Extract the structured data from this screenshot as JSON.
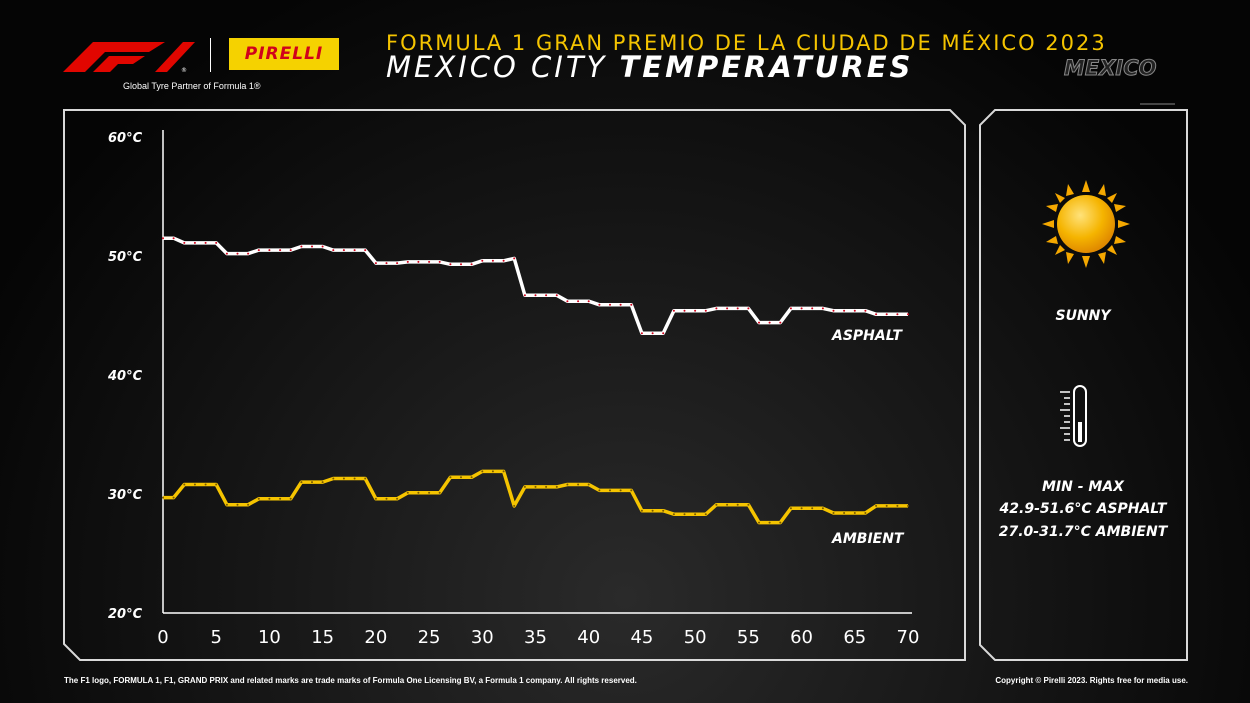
{
  "header": {
    "event_title": "FORMULA 1 GRAN PREMIO DE LA CIUDAD DE MÉXICO 2023",
    "title_light": "MEXICO CITY ",
    "title_bold": "TEMPERATURES",
    "country": "MEXICO",
    "tagline": "Global Tyre Partner of Formula 1®",
    "pirelli_logo_text": "PIRELLI"
  },
  "colors": {
    "asphalt": "#ffffff",
    "ambient": "#f5c400",
    "accent_yellow": "#f5c400",
    "pirelli_red": "#d0021b"
  },
  "chart_data": {
    "type": "line",
    "x": [
      0,
      1,
      2,
      3,
      4,
      5,
      6,
      7,
      8,
      9,
      10,
      11,
      12,
      13,
      14,
      15,
      16,
      17,
      18,
      19,
      20,
      21,
      22,
      23,
      24,
      25,
      26,
      27,
      28,
      29,
      30,
      31,
      32,
      33,
      34,
      35,
      36,
      37,
      38,
      39,
      40,
      41,
      42,
      43,
      44,
      45,
      46,
      47,
      48,
      49,
      50,
      51,
      52,
      53,
      54,
      55,
      56,
      57,
      58,
      59,
      60,
      61,
      62,
      63,
      64,
      65,
      66,
      67,
      68,
      69,
      70
    ],
    "xlim": [
      0,
      70
    ],
    "ylim": [
      20,
      60
    ],
    "x_ticks": [
      "0",
      "5",
      "10",
      "15",
      "20",
      "25",
      "30",
      "35",
      "40",
      "45",
      "50",
      "55",
      "60",
      "65",
      "70"
    ],
    "y_ticks": [
      "20°C",
      "30°C",
      "40°C",
      "50°C",
      "60°C"
    ],
    "series": [
      {
        "name": "ASPHALT",
        "values": [
          51.5,
          51.5,
          51.1,
          51.1,
          51.1,
          51.1,
          50.2,
          50.2,
          50.2,
          50.5,
          50.5,
          50.5,
          50.5,
          50.8,
          50.8,
          50.8,
          50.5,
          50.5,
          50.5,
          50.5,
          49.4,
          49.4,
          49.4,
          49.5,
          49.5,
          49.5,
          49.5,
          49.3,
          49.3,
          49.3,
          49.6,
          49.6,
          49.6,
          49.8,
          46.7,
          46.7,
          46.7,
          46.7,
          46.2,
          46.2,
          46.2,
          45.9,
          45.9,
          45.9,
          45.9,
          43.5,
          43.5,
          43.5,
          45.4,
          45.4,
          45.4,
          45.4,
          45.6,
          45.6,
          45.6,
          45.6,
          44.4,
          44.4,
          44.4,
          45.6,
          45.6,
          45.6,
          45.6,
          45.4,
          45.4,
          45.4,
          45.4,
          45.1,
          45.1,
          45.1,
          45.1
        ]
      },
      {
        "name": "AMBIENT",
        "values": [
          29.7,
          29.7,
          30.8,
          30.8,
          30.8,
          30.8,
          29.1,
          29.1,
          29.1,
          29.6,
          29.6,
          29.6,
          29.6,
          31.0,
          31.0,
          31.0,
          31.3,
          31.3,
          31.3,
          31.3,
          29.6,
          29.6,
          29.6,
          30.1,
          30.1,
          30.1,
          30.1,
          31.4,
          31.4,
          31.4,
          31.9,
          31.9,
          31.9,
          29.0,
          30.6,
          30.6,
          30.6,
          30.6,
          30.8,
          30.8,
          30.8,
          30.3,
          30.3,
          30.3,
          30.3,
          28.6,
          28.6,
          28.6,
          28.3,
          28.3,
          28.3,
          28.3,
          29.1,
          29.1,
          29.1,
          29.1,
          27.6,
          27.6,
          27.6,
          28.8,
          28.8,
          28.8,
          28.8,
          28.4,
          28.4,
          28.4,
          28.4,
          29.0,
          29.0,
          29.0,
          29.0
        ]
      }
    ],
    "grid": false
  },
  "weather": {
    "condition": "SUNNY",
    "minmax_header": "MIN  -  MAX",
    "asphalt_range": "42.9-51.6°C ASPHALT",
    "ambient_range": "27.0-31.7°C AMBIENT"
  },
  "footer": {
    "left": "The F1 logo, FORMULA 1, F1, GRAND PRIX and related marks are trade marks of Formula One Licensing BV, a Formula 1 company. All rights reserved.",
    "right": "Copyright © Pirelli 2023. Rights free for media use."
  }
}
